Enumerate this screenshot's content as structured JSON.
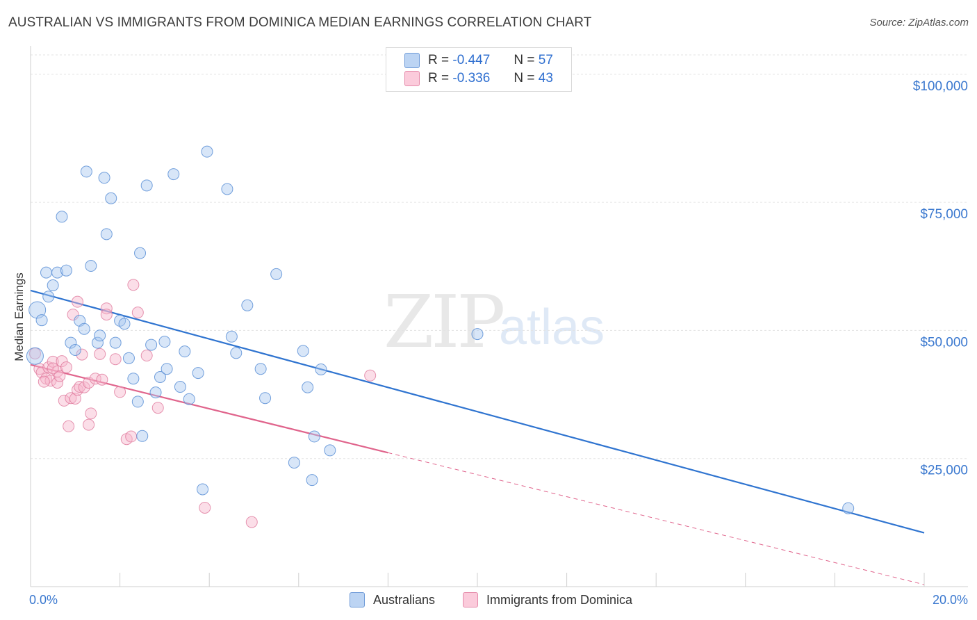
{
  "title": "AUSTRALIAN VS IMMIGRANTS FROM DOMINICA MEDIAN EARNINGS CORRELATION CHART",
  "source": "Source: ZipAtlas.com",
  "watermark": {
    "zip": "ZIP",
    "atlas": "atlas"
  },
  "legend_top": [
    {
      "r_label": "R =",
      "r_value": "-0.447",
      "n_label": "N =",
      "n_value": "57"
    },
    {
      "r_label": "R =",
      "r_value": "-0.336",
      "n_label": "N =",
      "n_value": "43"
    }
  ],
  "legend_bottom": [
    "Australians",
    "Immigrants from Dominica"
  ],
  "colors": {
    "blue_fill": "#a9c8ef",
    "blue_stroke": "#5b8fd6",
    "blue_line": "#2f74d0",
    "pink_fill": "#f6b6cb",
    "pink_stroke": "#e07a9d",
    "pink_line": "#e0648c",
    "axis_text": "#3a78cf"
  },
  "chart_data": {
    "type": "scatter",
    "title": "AUSTRALIAN VS IMMIGRANTS FROM DOMINICA MEDIAN EARNINGS CORRELATION CHART",
    "xlabel": "",
    "ylabel": "Median Earnings",
    "xlim": [
      0,
      20
    ],
    "ylim": [
      0,
      105000
    ],
    "x_ticks": [
      "0.0%",
      "20.0%"
    ],
    "y_ticks": [
      {
        "value": 25000,
        "label": "$25,000"
      },
      {
        "value": 50000,
        "label": "$50,000"
      },
      {
        "value": 75000,
        "label": "$75,000"
      },
      {
        "value": 100000,
        "label": "$100,000"
      }
    ],
    "series": [
      {
        "name": "Australians",
        "r": -0.447,
        "n": 57,
        "trend": {
          "x": [
            0,
            20
          ],
          "y": [
            57800,
            10500
          ],
          "solid_to": 20
        },
        "points": [
          [
            0.1,
            45000
          ],
          [
            0.15,
            54000
          ],
          [
            0.25,
            52000
          ],
          [
            0.35,
            61300
          ],
          [
            0.4,
            56600
          ],
          [
            0.5,
            58800
          ],
          [
            0.6,
            61300
          ],
          [
            0.7,
            72200
          ],
          [
            0.8,
            61700
          ],
          [
            0.9,
            47600
          ],
          [
            1.0,
            46200
          ],
          [
            1.1,
            51900
          ],
          [
            1.2,
            50300
          ],
          [
            1.25,
            81000
          ],
          [
            1.35,
            62600
          ],
          [
            1.5,
            47600
          ],
          [
            1.55,
            49000
          ],
          [
            1.65,
            79800
          ],
          [
            1.7,
            68800
          ],
          [
            1.8,
            75800
          ],
          [
            1.9,
            47600
          ],
          [
            2.0,
            51900
          ],
          [
            2.1,
            51300
          ],
          [
            2.2,
            44600
          ],
          [
            2.3,
            40600
          ],
          [
            2.4,
            36100
          ],
          [
            2.45,
            65100
          ],
          [
            2.5,
            29400
          ],
          [
            2.6,
            78300
          ],
          [
            2.7,
            47200
          ],
          [
            2.8,
            37900
          ],
          [
            2.9,
            40900
          ],
          [
            3.0,
            47800
          ],
          [
            3.05,
            42500
          ],
          [
            3.2,
            80500
          ],
          [
            3.35,
            39000
          ],
          [
            3.45,
            45900
          ],
          [
            3.55,
            36600
          ],
          [
            3.75,
            41700
          ],
          [
            3.85,
            19000
          ],
          [
            3.95,
            84900
          ],
          [
            4.4,
            77600
          ],
          [
            4.5,
            48800
          ],
          [
            4.6,
            45600
          ],
          [
            4.85,
            54900
          ],
          [
            5.15,
            42500
          ],
          [
            5.25,
            36800
          ],
          [
            5.5,
            61000
          ],
          [
            5.9,
            24200
          ],
          [
            6.1,
            46000
          ],
          [
            6.2,
            38900
          ],
          [
            6.3,
            20800
          ],
          [
            6.35,
            29300
          ],
          [
            6.5,
            42400
          ],
          [
            6.7,
            26600
          ],
          [
            10.0,
            49300
          ],
          [
            18.3,
            15300
          ]
        ]
      },
      {
        "name": "Immigrants from Dominica",
        "r": -0.336,
        "n": 43,
        "trend": {
          "x": [
            0,
            20
          ],
          "y": [
            43300,
            400
          ],
          "solid_to": 8.0
        },
        "points": [
          [
            0.1,
            45500
          ],
          [
            0.2,
            42500
          ],
          [
            0.25,
            41800
          ],
          [
            0.35,
            40600
          ],
          [
            0.4,
            42800
          ],
          [
            0.45,
            40200
          ],
          [
            0.5,
            43900
          ],
          [
            0.6,
            42000
          ],
          [
            0.6,
            39800
          ],
          [
            0.65,
            41100
          ],
          [
            0.7,
            44000
          ],
          [
            0.75,
            36300
          ],
          [
            0.8,
            42800
          ],
          [
            0.85,
            31300
          ],
          [
            0.9,
            36800
          ],
          [
            0.95,
            53100
          ],
          [
            1.0,
            36700
          ],
          [
            1.05,
            55600
          ],
          [
            1.05,
            38400
          ],
          [
            1.1,
            39000
          ],
          [
            1.15,
            45300
          ],
          [
            1.2,
            38900
          ],
          [
            1.3,
            39800
          ],
          [
            1.3,
            31600
          ],
          [
            1.35,
            33800
          ],
          [
            1.45,
            40600
          ],
          [
            1.55,
            45400
          ],
          [
            1.6,
            40400
          ],
          [
            1.7,
            54300
          ],
          [
            1.7,
            53100
          ],
          [
            1.9,
            44400
          ],
          [
            2.0,
            38000
          ],
          [
            2.15,
            28800
          ],
          [
            2.25,
            29300
          ],
          [
            2.3,
            58900
          ],
          [
            2.4,
            53500
          ],
          [
            2.6,
            45100
          ],
          [
            2.85,
            34900
          ],
          [
            3.9,
            15400
          ],
          [
            4.95,
            12600
          ],
          [
            7.6,
            41200
          ],
          [
            0.3,
            40000
          ],
          [
            0.5,
            42600
          ]
        ]
      }
    ]
  }
}
